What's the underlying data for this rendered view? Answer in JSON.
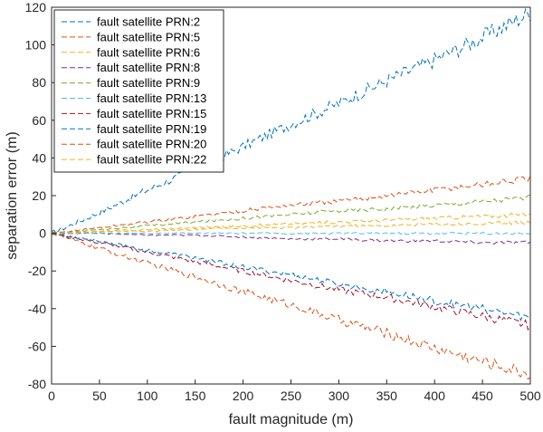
{
  "chart_data": {
    "type": "line",
    "title": "",
    "xlabel": "fault magnitude (m)",
    "ylabel": "separation error (m)",
    "xlim": [
      0,
      500
    ],
    "ylim": [
      -80,
      120
    ],
    "xticks": [
      0,
      50,
      100,
      150,
      200,
      250,
      300,
      350,
      400,
      450,
      500
    ],
    "yticks": [
      -80,
      -60,
      -40,
      -20,
      0,
      20,
      40,
      60,
      80,
      100,
      120
    ],
    "grid": false,
    "legend_position": "top-left",
    "line_style": "dashed",
    "x": [
      0,
      50,
      100,
      150,
      200,
      250,
      300,
      350,
      400,
      450,
      500
    ],
    "series": [
      {
        "name": "fault satellite PRN:2",
        "color": "#0072BD",
        "values": [
          0,
          11,
          23,
          34,
          46,
          58,
          69,
          81,
          92,
          104,
          117
        ]
      },
      {
        "name": "fault satellite PRN:5",
        "color": "#D95319",
        "values": [
          0,
          -8,
          -16,
          -23,
          -31,
          -38,
          -46,
          -53,
          -61,
          -68,
          -75
        ]
      },
      {
        "name": "fault satellite PRN:6",
        "color": "#EDB120",
        "values": [
          0,
          1,
          2,
          3,
          4,
          5,
          6,
          7,
          8,
          9,
          10
        ]
      },
      {
        "name": "fault satellite PRN:8",
        "color": "#7E2F8E",
        "values": [
          0,
          0,
          -1,
          -1,
          -2,
          -3,
          -3,
          -4,
          -4,
          -5,
          -5
        ]
      },
      {
        "name": "fault satellite PRN:9",
        "color": "#77AC30",
        "values": [
          0,
          2,
          4,
          6,
          8,
          10,
          12,
          13,
          15,
          17,
          19
        ]
      },
      {
        "name": "fault satellite PRN:13",
        "color": "#4DBEEE",
        "values": [
          0,
          0,
          0,
          0,
          0,
          0,
          0,
          0,
          0,
          0,
          0
        ]
      },
      {
        "name": "fault satellite PRN:15",
        "color": "#A2142F",
        "values": [
          0,
          -5,
          -10,
          -15,
          -20,
          -25,
          -30,
          -34,
          -39,
          -44,
          -49
        ]
      },
      {
        "name": "fault satellite PRN:19",
        "color": "#0072BD",
        "values": [
          0,
          -4,
          -9,
          -13,
          -18,
          -22,
          -27,
          -31,
          -36,
          -40,
          -45
        ]
      },
      {
        "name": "fault satellite PRN:20",
        "color": "#D95319",
        "values": [
          0,
          3,
          6,
          9,
          12,
          15,
          17,
          20,
          23,
          26,
          29
        ]
      },
      {
        "name": "fault satellite PRN:22",
        "color": "#EDB120",
        "values": [
          0,
          1,
          1,
          2,
          3,
          3,
          4,
          4,
          5,
          5,
          6
        ]
      }
    ]
  }
}
